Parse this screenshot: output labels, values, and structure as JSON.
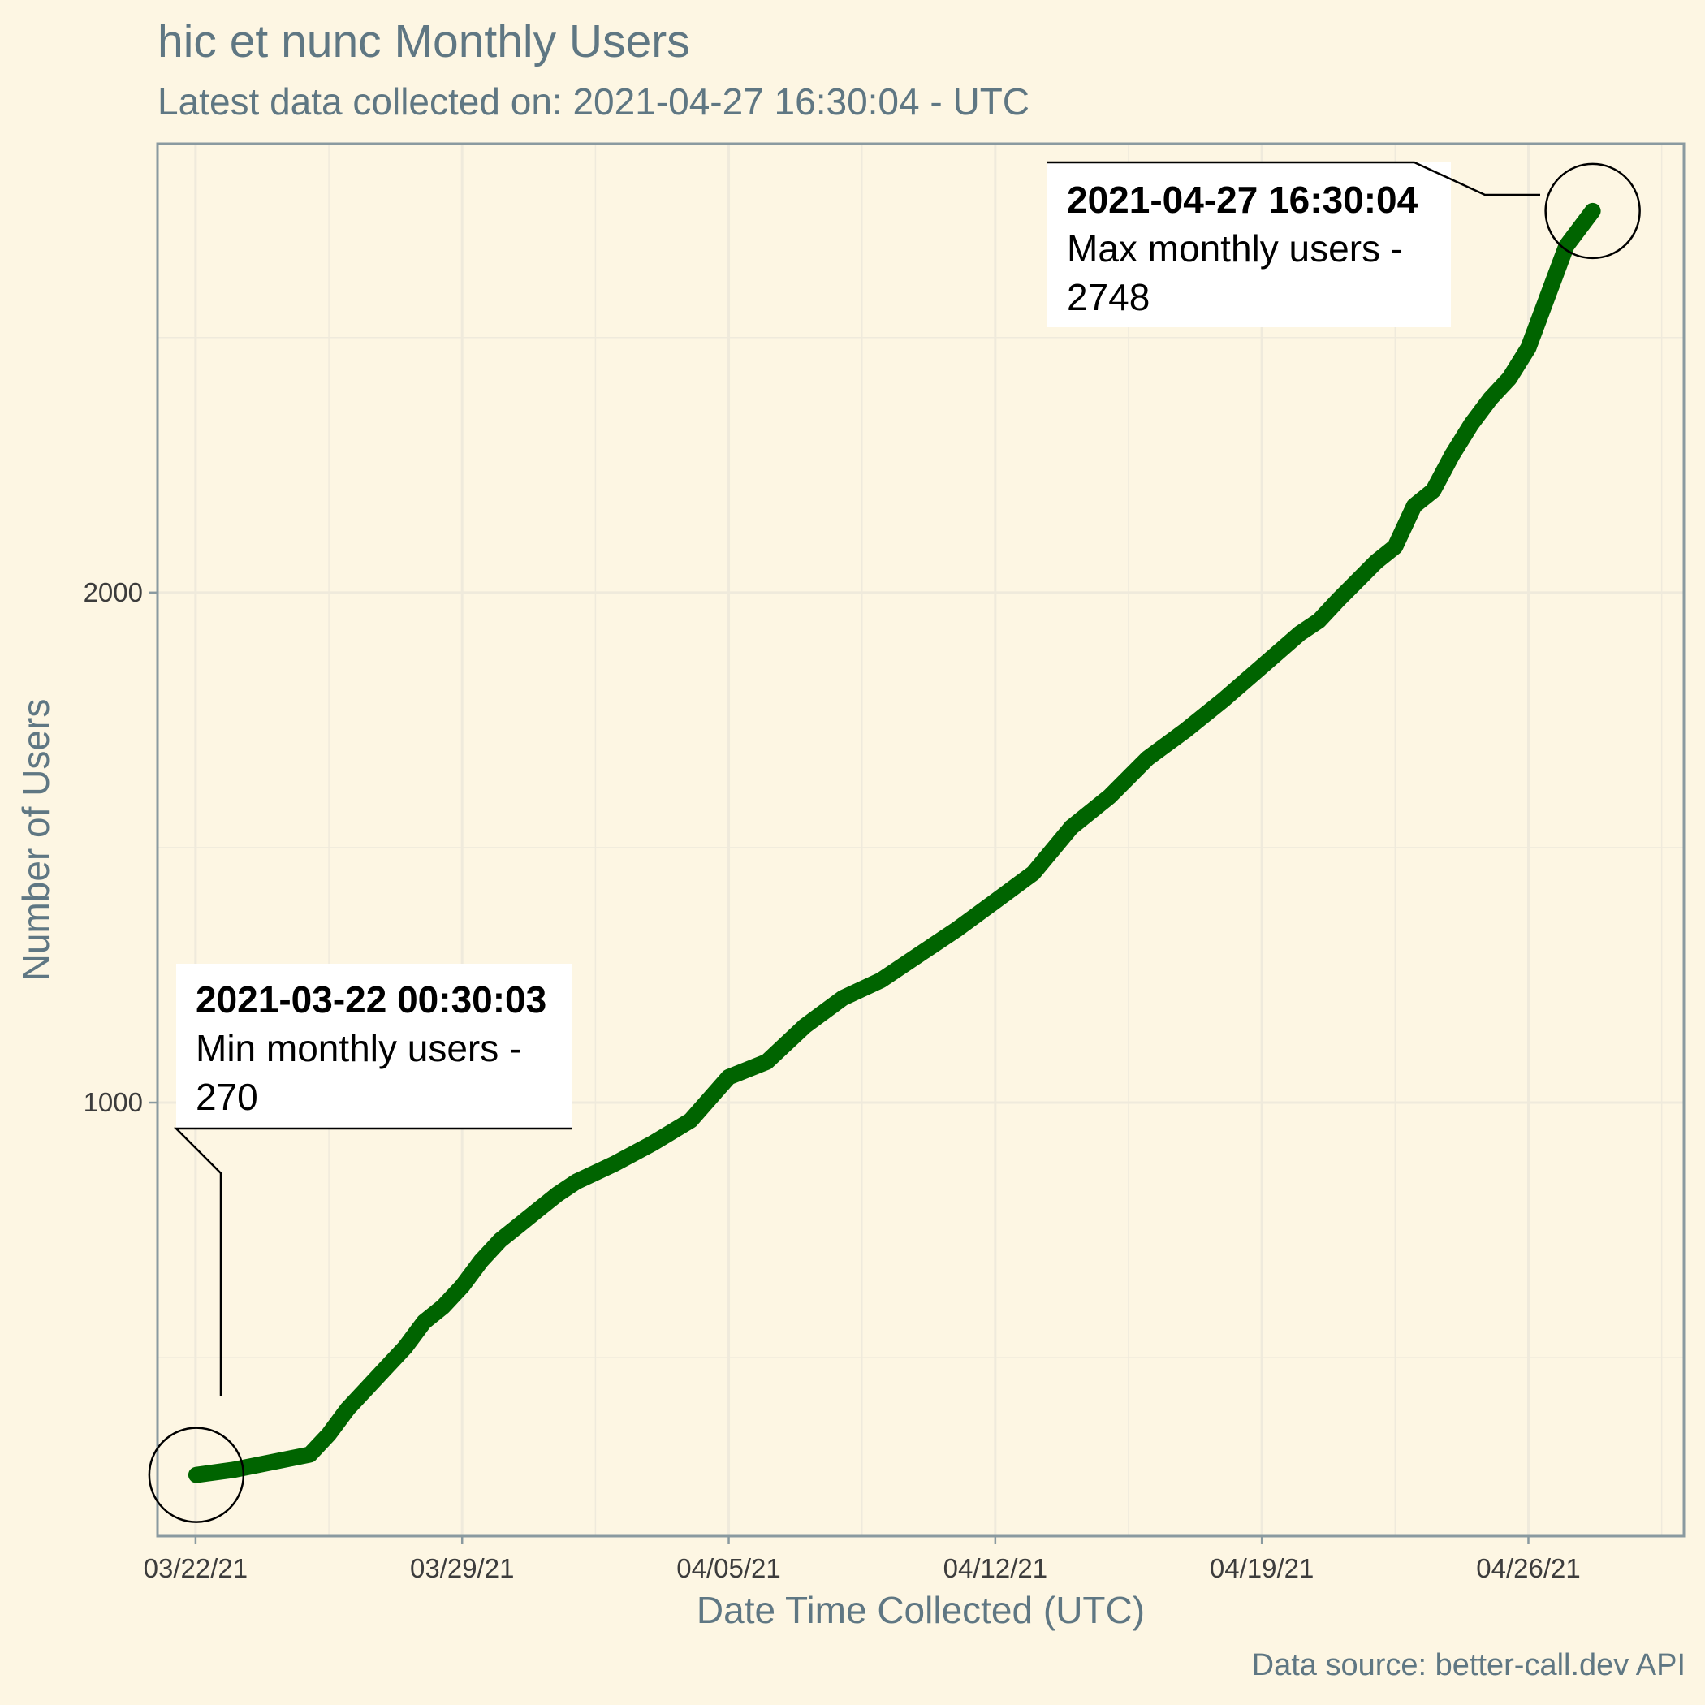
{
  "header": {
    "title": "hic et nunc Monthly Users",
    "subtitle": "Latest data collected on: 2021-04-27 16:30:04  - UTC"
  },
  "caption": "Data source: better-call.dev API",
  "colors": {
    "background": "#fdf6e3",
    "line": "#006400",
    "grid": "#efeadc",
    "axis_text": "#5f7783",
    "frame": "#8a9aa0"
  },
  "chart_data": {
    "type": "line",
    "xlabel": "Date Time Collected (UTC)",
    "ylabel": "Number of Users",
    "x_is_date": true,
    "xlim": [
      "2021-03-21T00:00:00",
      "2021-04-30T02:00:00"
    ],
    "ylim": [
      150,
      2880
    ],
    "x_ticks": [
      {
        "date": "2021-03-22T00:00:00",
        "label": "03/22/21"
      },
      {
        "date": "2021-03-29T00:00:00",
        "label": "03/29/21"
      },
      {
        "date": "2021-04-05T00:00:00",
        "label": "04/05/21"
      },
      {
        "date": "2021-04-12T00:00:00",
        "label": "04/12/21"
      },
      {
        "date": "2021-04-19T00:00:00",
        "label": "04/19/21"
      },
      {
        "date": "2021-04-26T00:00:00",
        "label": "04/26/21"
      }
    ],
    "y_ticks": [
      {
        "value": 1000,
        "label": "1000"
      },
      {
        "value": 2000,
        "label": "2000"
      }
    ],
    "grid": true,
    "series": [
      {
        "x": [
          "2021-03-22T00:30:03",
          "2021-03-23T00:00:00",
          "2021-03-24T00:00:00",
          "2021-03-25T00:00:00",
          "2021-03-25T12:00:00",
          "2021-03-26T00:00:00",
          "2021-03-26T12:00:00",
          "2021-03-27T00:00:00",
          "2021-03-27T12:00:00",
          "2021-03-28T00:00:00",
          "2021-03-28T12:00:00",
          "2021-03-29T00:00:00",
          "2021-03-29T12:00:00",
          "2021-03-30T00:00:00",
          "2021-03-30T12:00:00",
          "2021-03-31T00:00:00",
          "2021-03-31T12:00:00",
          "2021-04-01T00:00:00",
          "2021-04-02T00:00:00",
          "2021-04-03T00:00:00",
          "2021-04-04T00:00:00",
          "2021-04-05T00:00:00",
          "2021-04-06T00:00:00",
          "2021-04-07T00:00:00",
          "2021-04-08T00:00:00",
          "2021-04-09T00:00:00",
          "2021-04-10T00:00:00",
          "2021-04-11T00:00:00",
          "2021-04-12T00:00:00",
          "2021-04-13T00:00:00",
          "2021-04-14T00:00:00",
          "2021-04-15T00:00:00",
          "2021-04-16T00:00:00",
          "2021-04-17T00:00:00",
          "2021-04-18T00:00:00",
          "2021-04-19T00:00:00",
          "2021-04-20T00:00:00",
          "2021-04-20T12:00:00",
          "2021-04-21T00:00:00",
          "2021-04-22T00:00:00",
          "2021-04-22T12:00:00",
          "2021-04-23T00:00:00",
          "2021-04-23T12:00:00",
          "2021-04-24T00:00:00",
          "2021-04-24T12:00:00",
          "2021-04-25T00:00:00",
          "2021-04-25T12:00:00",
          "2021-04-26T00:00:00",
          "2021-04-26T12:00:00",
          "2021-04-27T00:00:00",
          "2021-04-27T16:30:04"
        ],
        "y": [
          270,
          280,
          295,
          310,
          350,
          400,
          440,
          480,
          520,
          570,
          600,
          640,
          690,
          730,
          760,
          790,
          820,
          845,
          880,
          920,
          965,
          1050,
          1080,
          1150,
          1205,
          1240,
          1290,
          1340,
          1395,
          1450,
          1540,
          1600,
          1675,
          1730,
          1790,
          1855,
          1920,
          1945,
          1985,
          2060,
          2090,
          2170,
          2200,
          2270,
          2330,
          2380,
          2420,
          2480,
          2580,
          2680,
          2748
        ],
        "style": "solid-thick"
      }
    ],
    "annotations": [
      {
        "kind": "min",
        "date_time": "2021-03-22 00:30:03",
        "label": "Min monthly users -",
        "value_text": "270",
        "x": "2021-03-22T00:30:03",
        "y": 270
      },
      {
        "kind": "max",
        "date_time": "2021-04-27 16:30:04",
        "label": "Max monthly users -",
        "value_text": "2748",
        "x": "2021-04-27T16:30:04",
        "y": 2748
      }
    ]
  }
}
